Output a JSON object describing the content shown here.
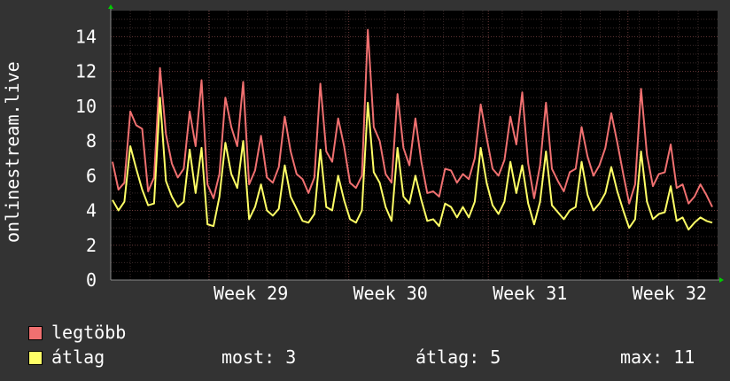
{
  "colors": {
    "background": "#333333",
    "plot_background": "#000000",
    "grid": "#555555",
    "axis": "#888888",
    "arrow": "#00cc00",
    "series_max": "#f07070",
    "series_avg": "#ffff66"
  },
  "legend": {
    "max_label": "legtöbb",
    "avg_label": "átlag"
  },
  "stats": {
    "now": "most: 3",
    "avg": "átlag: 5",
    "max": "max: 11"
  },
  "chart_data": {
    "type": "line",
    "ylabel": "onlinestream.live",
    "xlabel": "",
    "ylim": [
      0,
      15.5
    ],
    "yticks": [
      "0",
      "2",
      "4",
      "6",
      "8",
      "10",
      "12",
      "14"
    ],
    "ytick_values": [
      0,
      2,
      4,
      6,
      8,
      10,
      12,
      14
    ],
    "xticks": [
      {
        "label": "Week 29",
        "pos": 0.225
      },
      {
        "label": "Week 30",
        "pos": 0.455
      },
      {
        "label": "Week 31",
        "pos": 0.685
      },
      {
        "label": "Week 32",
        "pos": 0.915
      }
    ],
    "grid": true,
    "series": [
      {
        "name": "legtöbb",
        "color": "#f07070",
        "values": [
          6.8,
          5.2,
          5.6,
          9.7,
          8.9,
          8.7,
          5.1,
          5.9,
          12.2,
          8.4,
          6.7,
          5.9,
          6.4,
          9.7,
          7.7,
          11.5,
          5.5,
          4.7,
          6.1,
          10.5,
          8.8,
          7.7,
          11.4,
          5.5,
          6.3,
          8.3,
          5.9,
          5.6,
          6.5,
          9.4,
          7.4,
          6.1,
          5.8,
          5.0,
          5.9,
          11.3,
          7.4,
          6.8,
          9.3,
          7.7,
          5.6,
          5.3,
          6.0,
          14.4,
          8.8,
          8.0,
          6.1,
          5.6,
          10.7,
          7.6,
          6.6,
          9.3,
          6.8,
          5.0,
          5.1,
          4.8,
          6.4,
          6.3,
          5.6,
          6.1,
          5.8,
          7.0,
          10.1,
          8.2,
          6.4,
          6.0,
          6.9,
          9.4,
          7.8,
          10.8,
          6.7,
          4.7,
          6.6,
          10.2,
          6.4,
          5.7,
          5.1,
          6.2,
          6.4,
          8.8,
          7.1,
          6.0,
          6.6,
          7.6,
          9.6,
          7.9,
          6.1,
          4.4,
          5.5,
          11.0,
          7.2,
          5.4,
          6.1,
          6.2,
          7.8,
          5.3,
          5.5,
          4.4,
          4.8,
          5.5,
          4.9,
          4.2
        ]
      },
      {
        "name": "átlag",
        "color": "#ffff66",
        "values": [
          4.6,
          4.0,
          4.5,
          7.7,
          6.4,
          5.2,
          4.3,
          4.4,
          10.5,
          5.7,
          4.8,
          4.2,
          4.5,
          7.5,
          5.0,
          7.6,
          3.2,
          3.1,
          4.8,
          7.9,
          6.1,
          5.3,
          8.0,
          3.5,
          4.2,
          5.5,
          4.0,
          3.7,
          4.1,
          6.6,
          4.8,
          4.1,
          3.4,
          3.3,
          3.8,
          7.5,
          4.2,
          4.0,
          6.0,
          4.6,
          3.5,
          3.3,
          4.0,
          10.2,
          6.2,
          5.6,
          4.2,
          3.4,
          7.6,
          4.8,
          4.4,
          6.0,
          4.6,
          3.4,
          3.5,
          3.1,
          4.4,
          4.2,
          3.6,
          4.2,
          3.6,
          4.5,
          7.6,
          5.6,
          4.3,
          3.8,
          4.5,
          6.8,
          5.0,
          6.6,
          4.4,
          3.2,
          4.5,
          7.4,
          4.3,
          3.9,
          3.5,
          4.0,
          4.2,
          6.8,
          4.9,
          4.0,
          4.4,
          5.0,
          6.5,
          5.1,
          4.0,
          3.0,
          3.5,
          7.4,
          4.5,
          3.5,
          3.8,
          3.9,
          5.4,
          3.4,
          3.6,
          2.9,
          3.3,
          3.6,
          3.4,
          3.3
        ]
      }
    ]
  }
}
